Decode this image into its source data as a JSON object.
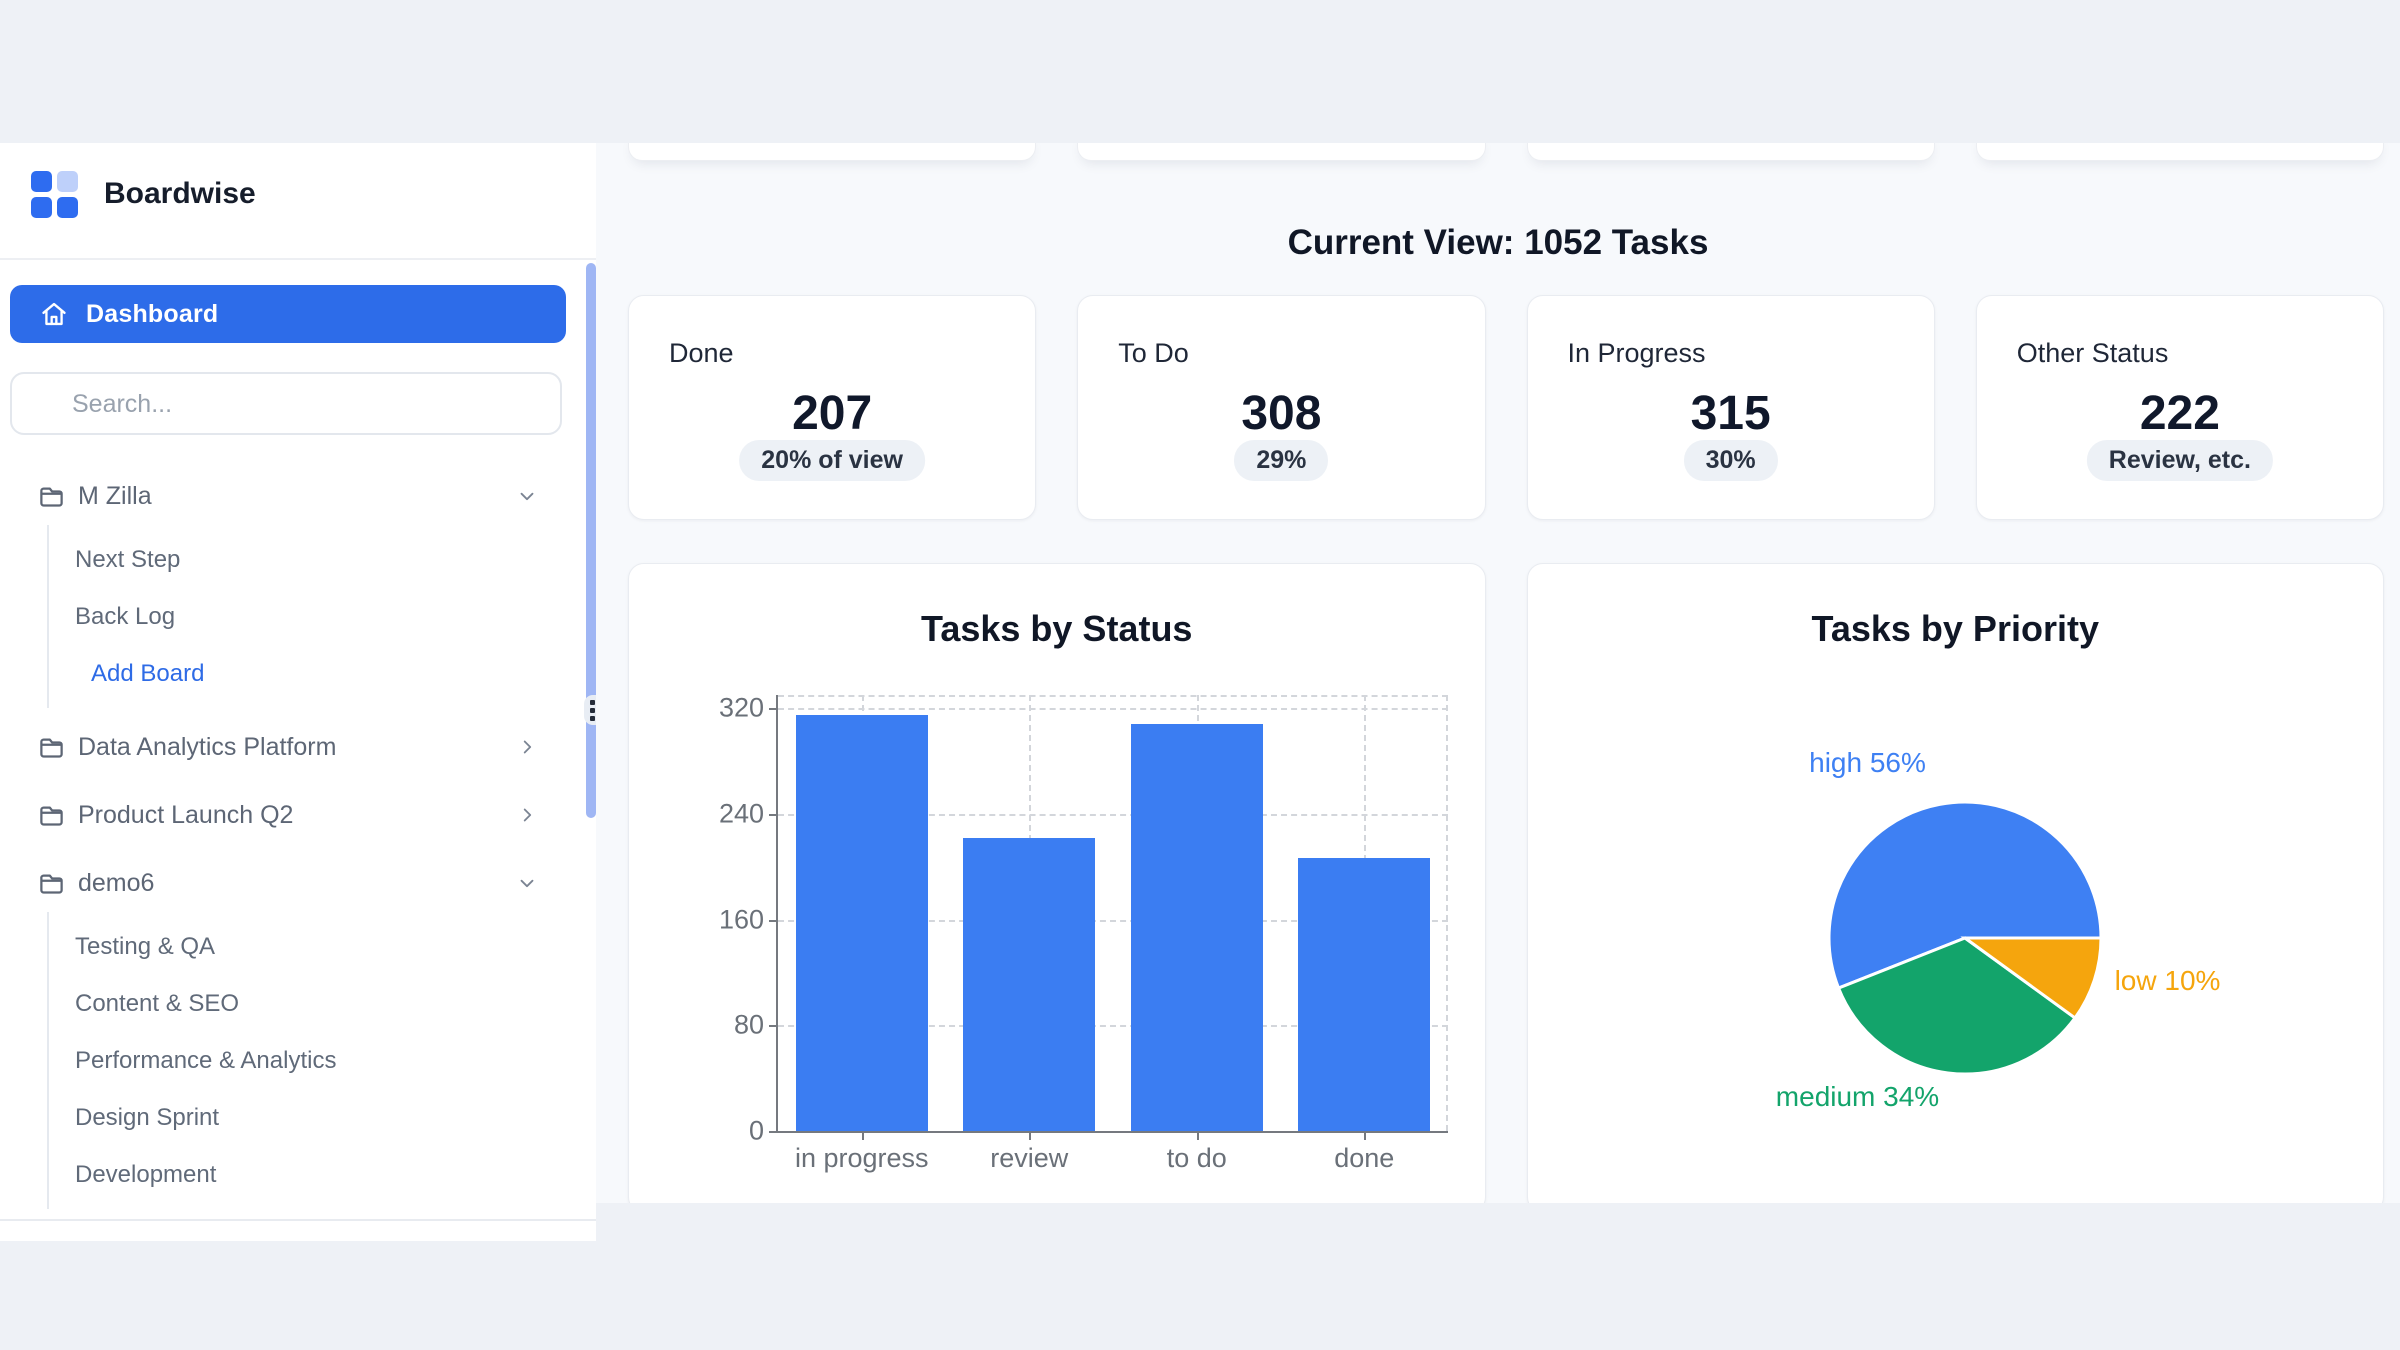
{
  "app": {
    "title": "Boardwise"
  },
  "colors": {
    "accent_blue": "#2d6ce9",
    "bar_blue": "#3b7df2",
    "pie_blue": "#3e80f3",
    "pie_green": "#13a46b",
    "pie_orange": "#f5a50d",
    "logo_blue": "#2e6cf0",
    "logo_light_blue": "#bed0fa",
    "scrollbar_thumb": "#9fb6f4"
  },
  "sidebar": {
    "logo_text": "Boardwise",
    "dashboard_label": "Dashboard",
    "search": {
      "placeholder": "Search...",
      "value": ""
    },
    "boards": [
      {
        "label": "M Zilla",
        "state": "expanded",
        "children": [
          "Next Step",
          "Back Log"
        ],
        "action": "Add Board"
      },
      {
        "label": "Data Analytics Platform",
        "state": "collapsed"
      },
      {
        "label": "Product Launch Q2",
        "state": "collapsed"
      },
      {
        "label": "demo6",
        "state": "expanded",
        "children": [
          "Testing & QA",
          "Content & SEO",
          "Performance & Analytics",
          "Design Sprint",
          "Development"
        ]
      }
    ]
  },
  "main": {
    "heading": "Current View: 1052 Tasks",
    "stats": [
      {
        "label": "Done",
        "value": "207",
        "badge": "20% of view"
      },
      {
        "label": "To Do",
        "value": "308",
        "badge": "29%"
      },
      {
        "label": "In Progress",
        "value": "315",
        "badge": "30%"
      },
      {
        "label": "Other Status",
        "value": "222",
        "badge": "Review, etc."
      }
    ]
  },
  "chart_data": [
    {
      "type": "bar",
      "title": "Tasks by Status",
      "categories": [
        "in progress",
        "review",
        "to do",
        "done"
      ],
      "values": [
        315,
        222,
        308,
        207
      ],
      "yticks": [
        0,
        80,
        160,
        240,
        320
      ],
      "ylim": [
        0,
        330
      ],
      "xlabel": "",
      "ylabel": "",
      "grid": "dashed",
      "legend": "none",
      "bar_color": "#3b7df2"
    },
    {
      "type": "pie",
      "title": "Tasks by Priority",
      "slices": [
        {
          "label": "high",
          "pct": 56,
          "color": "#3e80f3",
          "display": "high 56%"
        },
        {
          "label": "medium",
          "pct": 34,
          "color": "#13a46b",
          "display": "medium 34%"
        },
        {
          "label": "low",
          "pct": 10,
          "color": "#f5a50d",
          "display": "low 10%"
        }
      ],
      "start_angle_deg": 0,
      "direction": "counterclockwise",
      "legend": "outside-labels"
    }
  ]
}
